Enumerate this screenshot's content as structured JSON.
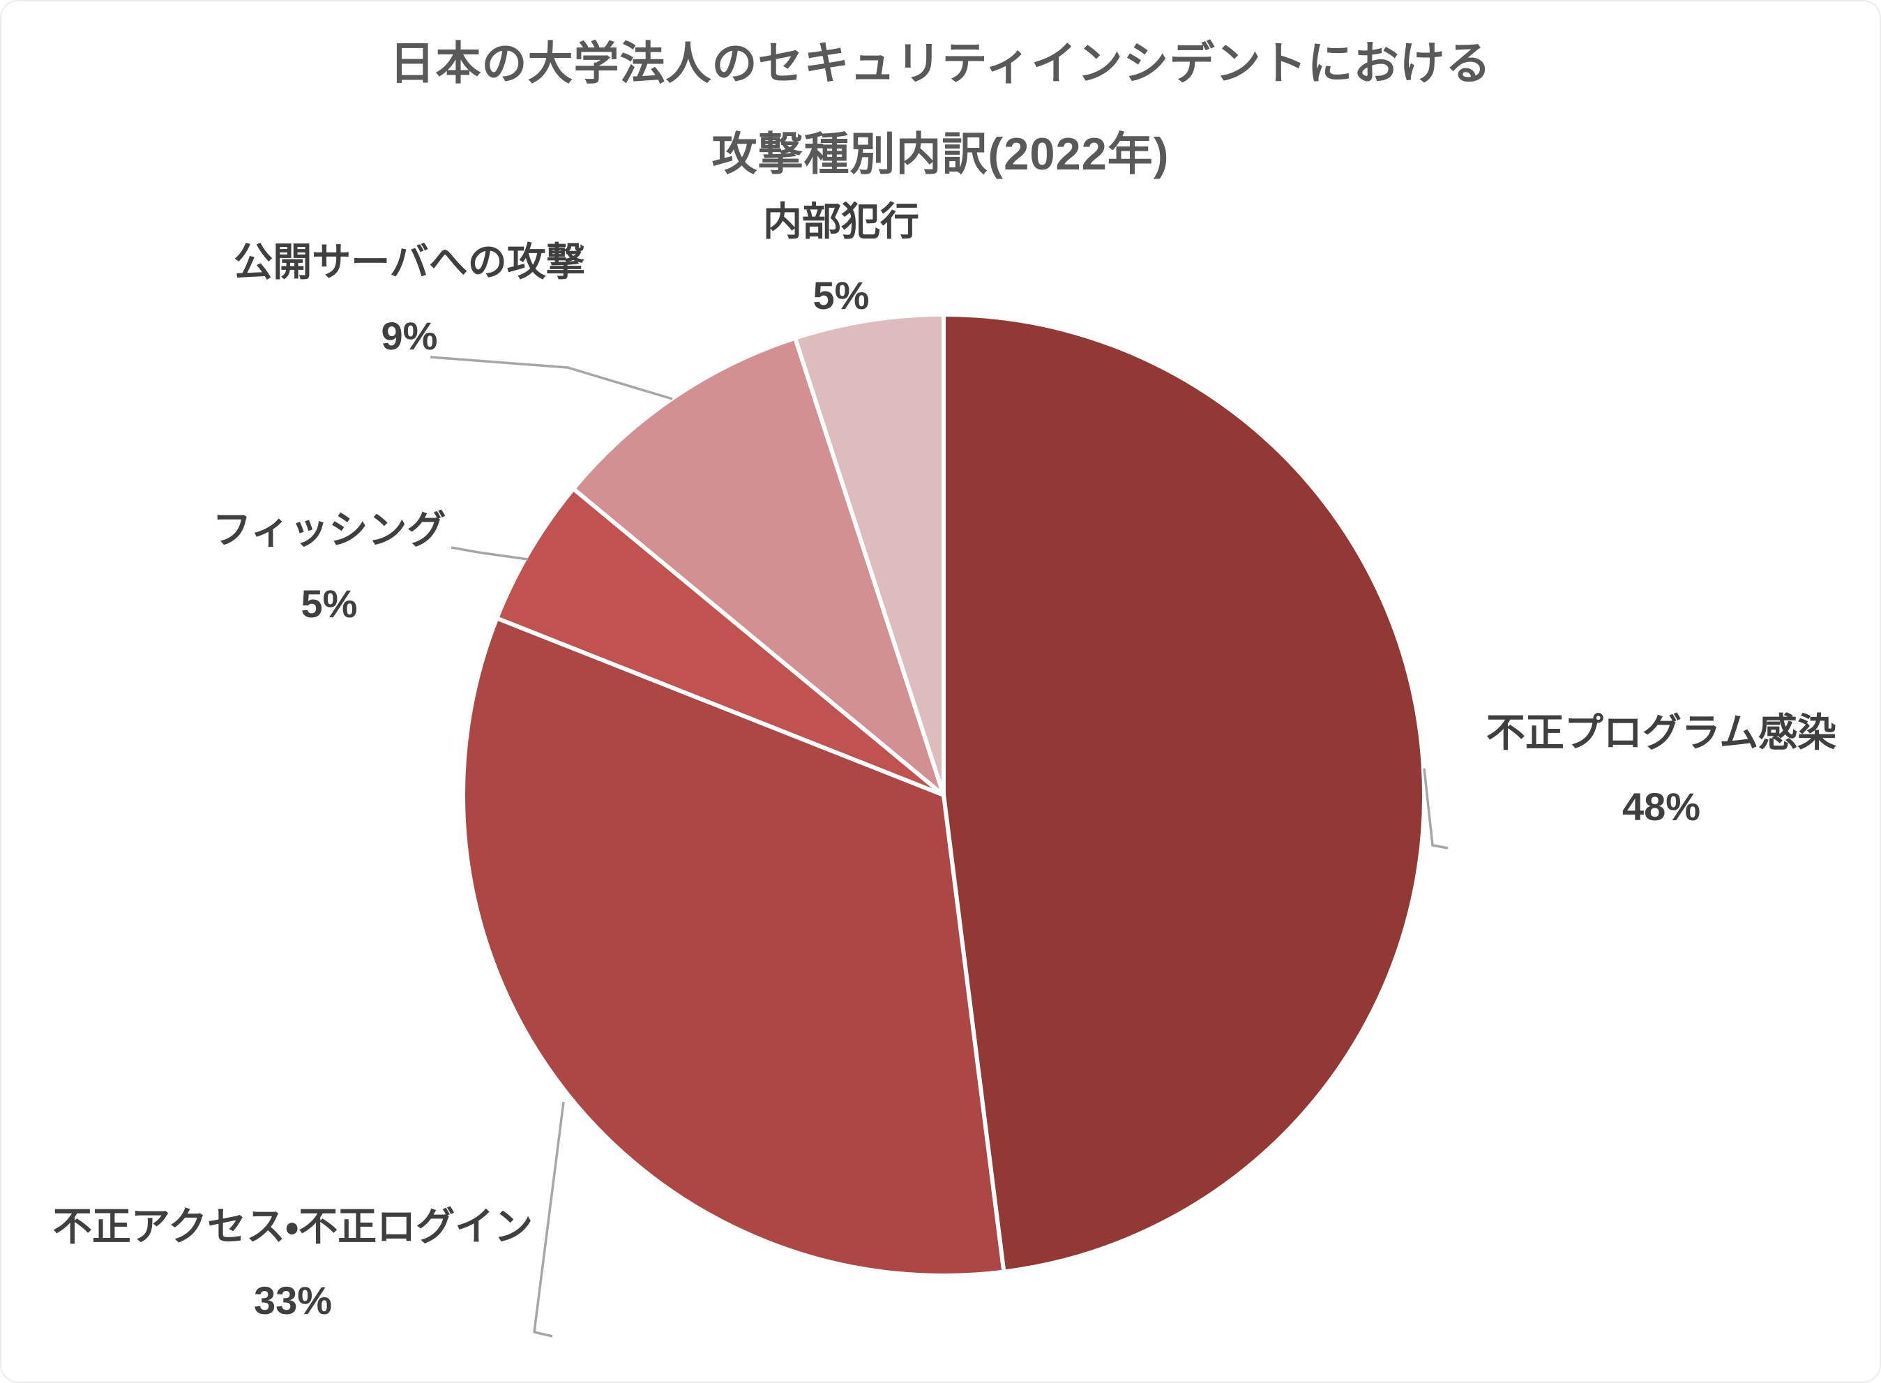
{
  "chart_data": {
    "type": "pie",
    "title": {
      "line1": "日本の大学法人のセキュリティインシデントにおける",
      "line2": "攻撃種別内訳(2022年)"
    },
    "slices": [
      {
        "id": "malware",
        "label": "不正プログラム感染",
        "value": 48,
        "percent_label": "48%",
        "color": "#923936"
      },
      {
        "id": "unauthorized-access",
        "label": "不正アクセス・不正ログイン",
        "value": 33,
        "percent_label": "33%",
        "color": "#AC4745"
      },
      {
        "id": "phishing",
        "label": "フィッシング",
        "value": 5,
        "percent_label": "5%",
        "color": "#C05250"
      },
      {
        "id": "server-attack",
        "label": "公開サーバへの攻撃",
        "value": 9,
        "percent_label": "9%",
        "color": "#D29092"
      },
      {
        "id": "insider",
        "label": "内部犯行",
        "value": 5,
        "percent_label": "5%",
        "color": "#DDBCBE"
      }
    ],
    "start_angle_deg": 0,
    "direction": "clockwise",
    "legend": "none",
    "data_label_format": "category name + percentage",
    "colors": {
      "title_text": "#595959",
      "label_text": "#3F3F3F",
      "leader_line": "#A6A6A6",
      "slice_border": "#FFFFFF",
      "background": "#FFFFFF"
    }
  }
}
